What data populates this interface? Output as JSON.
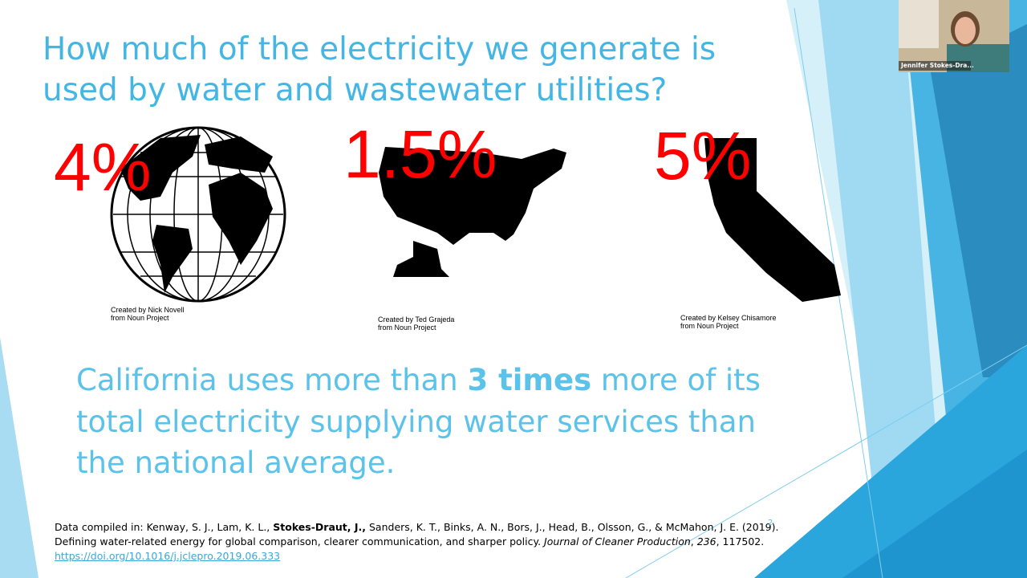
{
  "slide": {
    "title_lines": [
      "How much of the electricity we generate is",
      "used by water and wastewater utilities?"
    ],
    "stats": [
      {
        "value": "4%",
        "credit": [
          "Created by Nick Novell",
          "from Noun Project"
        ]
      },
      {
        "value": "1.5%",
        "credit": [
          "Created by Ted Grajeda",
          "from Noun Project"
        ]
      },
      {
        "value": "5%",
        "credit": [
          "Created by Kelsey Chisamore",
          "from Noun Project"
        ]
      }
    ],
    "body": [
      "California uses more than ",
      "3 times",
      " more of its total electricity supplying water services than the national average."
    ],
    "citation": [
      "Data compiled in: Kenway, S. J., Lam, K. L., ",
      "Stokes-Draut, J.,",
      " Sanders, K. T., Binks, A. N., Bors, J., Head, B., Olsson, G., & McMahon, J. E. (2019). Defining water-related energy for global comparison, clearer communication, and sharper policy. ",
      "Journal of Cleaner Production",
      ", ",
      "236",
      ", 117502. ",
      "https://doi.org/10.1016/j.jclepro.2019.06.333"
    ],
    "slide_number": "2"
  },
  "participant": {
    "name": "Jennifer Stokes-Dra..."
  }
}
